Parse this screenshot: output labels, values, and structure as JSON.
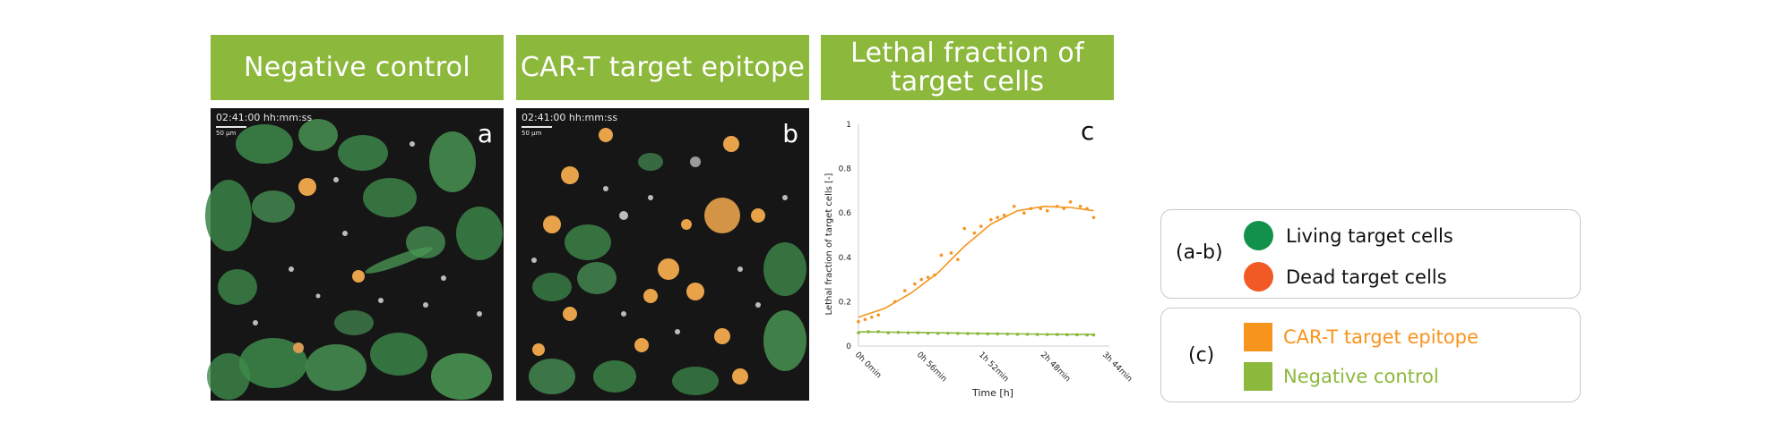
{
  "headers": {
    "negative": "Negative control",
    "cart": "CAR-T target epitope",
    "lethal": "Lethal fraction of target cells"
  },
  "panels": {
    "a": {
      "label": "a",
      "timestamp": "02:41:00 hh:mm:ss",
      "scale": "50 µm"
    },
    "b": {
      "label": "b",
      "timestamp": "02:41:00 hh:mm:ss",
      "scale": "50 µm"
    }
  },
  "chart_data": {
    "type": "line",
    "panel_label": "c",
    "xlabel": "Time [h]",
    "ylabel": "Lethal fraction of target cells [-]",
    "ylim": [
      0,
      1
    ],
    "yticks": [
      "0",
      "0.2",
      "0.4",
      "0.6",
      "0.8",
      "1"
    ],
    "xticks": [
      "0h 0min",
      "0h 56min",
      "1h 52min",
      "2h 48min",
      "3h 44min"
    ],
    "x_hours": [
      0,
      0.933,
      1.867,
      2.8,
      3.733
    ],
    "series": [
      {
        "name": "CAR-T target epitope",
        "color": "#f7941d",
        "points": [
          [
            0.0,
            0.11
          ],
          [
            0.1,
            0.12
          ],
          [
            0.2,
            0.13
          ],
          [
            0.3,
            0.14
          ],
          [
            0.55,
            0.2
          ],
          [
            0.7,
            0.25
          ],
          [
            0.85,
            0.28
          ],
          [
            0.95,
            0.3
          ],
          [
            1.05,
            0.31
          ],
          [
            1.15,
            0.32
          ],
          [
            1.25,
            0.41
          ],
          [
            1.4,
            0.42
          ],
          [
            1.5,
            0.39
          ],
          [
            1.6,
            0.53
          ],
          [
            1.75,
            0.51
          ],
          [
            1.85,
            0.54
          ],
          [
            2.0,
            0.57
          ],
          [
            2.1,
            0.58
          ],
          [
            2.2,
            0.59
          ],
          [
            2.35,
            0.63
          ],
          [
            2.5,
            0.6
          ],
          [
            2.6,
            0.62
          ],
          [
            2.75,
            0.62
          ],
          [
            2.85,
            0.61
          ],
          [
            3.0,
            0.63
          ],
          [
            3.1,
            0.62
          ],
          [
            3.2,
            0.65
          ],
          [
            3.35,
            0.63
          ],
          [
            3.45,
            0.62
          ],
          [
            3.55,
            0.58
          ]
        ],
        "fit": [
          [
            0.0,
            0.13
          ],
          [
            0.4,
            0.17
          ],
          [
            0.8,
            0.24
          ],
          [
            1.2,
            0.33
          ],
          [
            1.6,
            0.45
          ],
          [
            2.0,
            0.55
          ],
          [
            2.4,
            0.61
          ],
          [
            2.8,
            0.63
          ],
          [
            3.2,
            0.625
          ],
          [
            3.55,
            0.61
          ]
        ]
      },
      {
        "name": "Negative control",
        "color": "#8cb83c",
        "points": [
          [
            0.0,
            0.06
          ],
          [
            0.15,
            0.065
          ],
          [
            0.3,
            0.065
          ],
          [
            0.45,
            0.06
          ],
          [
            0.6,
            0.062
          ],
          [
            0.75,
            0.06
          ],
          [
            0.9,
            0.06
          ],
          [
            1.05,
            0.058
          ],
          [
            1.2,
            0.057
          ],
          [
            1.35,
            0.058
          ],
          [
            1.5,
            0.057
          ],
          [
            1.65,
            0.056
          ],
          [
            1.8,
            0.056
          ],
          [
            1.95,
            0.055
          ],
          [
            2.1,
            0.055
          ],
          [
            2.25,
            0.054
          ],
          [
            2.4,
            0.053
          ],
          [
            2.55,
            0.053
          ],
          [
            2.7,
            0.052
          ],
          [
            2.85,
            0.052
          ],
          [
            3.0,
            0.052
          ],
          [
            3.15,
            0.051
          ],
          [
            3.3,
            0.051
          ],
          [
            3.45,
            0.05
          ],
          [
            3.55,
            0.05
          ]
        ],
        "fit": [
          [
            0.0,
            0.064
          ],
          [
            1.0,
            0.061
          ],
          [
            2.0,
            0.056
          ],
          [
            3.0,
            0.053
          ],
          [
            3.55,
            0.052
          ]
        ]
      }
    ]
  },
  "legend_ab": {
    "key": "(a-b)",
    "items": [
      {
        "label": "Living target cells",
        "color": "#11914a"
      },
      {
        "label": "Dead target cells",
        "color": "#f15a24"
      }
    ]
  },
  "legend_c": {
    "key": "(c)",
    "items": [
      {
        "label": "CAR-T target epitope",
        "color": "#f7941d"
      },
      {
        "label": "Negative control",
        "color": "#8cb83c"
      }
    ]
  }
}
